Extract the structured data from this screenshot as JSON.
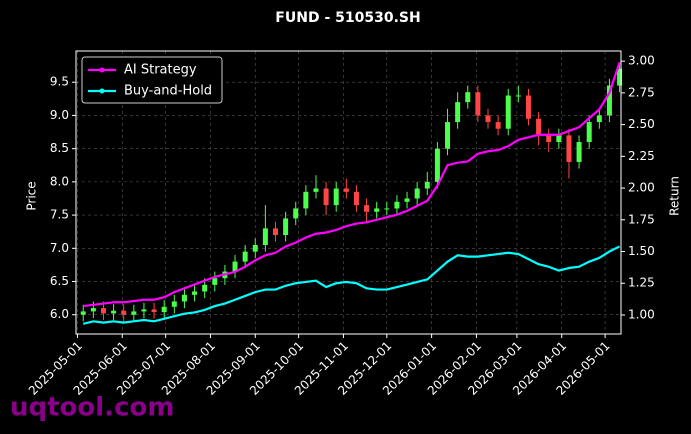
{
  "chart_data": {
    "type": "candlestick",
    "title": "FUND - 510530.SH",
    "ylabel": "Price",
    "y2label": "Return",
    "x": [
      "2025-05-05",
      "2025-05-12",
      "2025-05-19",
      "2025-05-26",
      "2025-06-02",
      "2025-06-09",
      "2025-06-16",
      "2025-06-23",
      "2025-06-30",
      "2025-07-07",
      "2025-07-14",
      "2025-07-21",
      "2025-07-28",
      "2025-08-04",
      "2025-08-11",
      "2025-08-18",
      "2025-08-25",
      "2025-09-01",
      "2025-09-08",
      "2025-09-15",
      "2025-09-22",
      "2025-09-29",
      "2025-10-06",
      "2025-10-13",
      "2025-10-20",
      "2025-10-27",
      "2025-11-03",
      "2025-11-10",
      "2025-11-17",
      "2025-11-24",
      "2025-12-01",
      "2025-12-08",
      "2025-12-15",
      "2025-12-22",
      "2025-12-29",
      "2026-01-05",
      "2026-01-12",
      "2026-01-19",
      "2026-01-26",
      "2026-02-02",
      "2026-02-09",
      "2026-02-16",
      "2026-02-23",
      "2026-03-02",
      "2026-03-09",
      "2026-03-16",
      "2026-03-23",
      "2026-03-30",
      "2026-04-06",
      "2026-04-13",
      "2026-04-20",
      "2026-04-27",
      "2026-05-04",
      "2026-05-11"
    ],
    "open": [
      6.0,
      6.05,
      6.1,
      6.02,
      6.06,
      6.0,
      6.05,
      6.08,
      6.04,
      6.12,
      6.2,
      6.3,
      6.35,
      6.45,
      6.55,
      6.65,
      6.8,
      6.95,
      7.05,
      7.3,
      7.2,
      7.45,
      7.6,
      7.85,
      7.9,
      7.65,
      7.9,
      7.85,
      7.65,
      7.55,
      7.6,
      7.6,
      7.7,
      7.75,
      7.9,
      8.0,
      8.5,
      8.9,
      9.2,
      9.35,
      9.0,
      8.9,
      8.8,
      9.3,
      9.3,
      8.95,
      8.7,
      8.6,
      8.7,
      8.3,
      8.6,
      8.9,
      9.0,
      9.45
    ],
    "high": [
      6.15,
      6.2,
      6.2,
      6.16,
      6.16,
      6.15,
      6.18,
      6.18,
      6.22,
      6.3,
      6.4,
      6.45,
      6.55,
      6.65,
      6.75,
      6.9,
      7.05,
      7.15,
      7.65,
      7.4,
      7.55,
      7.7,
      7.95,
      8.1,
      8.0,
      8.0,
      8.05,
      7.95,
      7.75,
      7.7,
      7.7,
      7.8,
      7.85,
      8.0,
      8.15,
      8.6,
      9.1,
      9.35,
      9.45,
      9.45,
      9.1,
      9.0,
      9.4,
      9.45,
      9.4,
      9.05,
      8.8,
      8.8,
      8.8,
      8.7,
      9.0,
      9.1,
      9.55,
      9.8
    ],
    "low": [
      5.9,
      5.95,
      5.92,
      5.92,
      5.9,
      5.9,
      5.95,
      5.94,
      5.94,
      6.02,
      6.1,
      6.2,
      6.25,
      6.35,
      6.45,
      6.55,
      6.7,
      6.85,
      6.95,
      7.1,
      7.1,
      7.35,
      7.5,
      7.75,
      7.5,
      7.55,
      7.75,
      7.55,
      7.4,
      7.45,
      7.5,
      7.5,
      7.6,
      7.65,
      7.8,
      7.9,
      8.4,
      8.8,
      9.1,
      8.9,
      8.8,
      8.7,
      8.7,
      9.2,
      8.85,
      8.55,
      8.45,
      8.5,
      8.05,
      8.2,
      8.5,
      8.8,
      8.9,
      9.35
    ],
    "close": [
      6.05,
      6.1,
      6.02,
      6.06,
      6.0,
      6.05,
      6.08,
      6.04,
      6.12,
      6.2,
      6.3,
      6.35,
      6.45,
      6.55,
      6.65,
      6.8,
      6.95,
      7.05,
      7.3,
      7.2,
      7.45,
      7.6,
      7.85,
      7.9,
      7.65,
      7.9,
      7.85,
      7.65,
      7.55,
      7.6,
      7.6,
      7.7,
      7.75,
      7.9,
      8.0,
      8.5,
      8.9,
      9.2,
      9.35,
      9.0,
      8.9,
      8.8,
      9.3,
      9.3,
      8.95,
      8.7,
      8.6,
      8.7,
      8.3,
      8.6,
      8.9,
      9.0,
      9.45,
      9.7
    ],
    "up_color": "#4cff4c",
    "down_color": "#ff4545",
    "series": [
      {
        "name": "AI Strategy",
        "color": "#ff00ff",
        "axis": "y2",
        "values": [
          1.07,
          1.08,
          1.09,
          1.1,
          1.1,
          1.11,
          1.12,
          1.12,
          1.14,
          1.18,
          1.21,
          1.24,
          1.27,
          1.3,
          1.32,
          1.34,
          1.38,
          1.43,
          1.47,
          1.49,
          1.54,
          1.57,
          1.61,
          1.64,
          1.65,
          1.67,
          1.7,
          1.72,
          1.73,
          1.75,
          1.77,
          1.79,
          1.82,
          1.86,
          1.9,
          2.02,
          2.18,
          2.2,
          2.21,
          2.27,
          2.29,
          2.3,
          2.33,
          2.38,
          2.4,
          2.42,
          2.42,
          2.42,
          2.45,
          2.48,
          2.55,
          2.62,
          2.75,
          2.99
        ]
      },
      {
        "name": "Buy-and-Hold",
        "color": "#00ffff",
        "axis": "y2",
        "values": [
          0.93,
          0.95,
          0.94,
          0.95,
          0.94,
          0.95,
          0.96,
          0.95,
          0.97,
          0.99,
          1.01,
          1.02,
          1.04,
          1.07,
          1.09,
          1.12,
          1.15,
          1.18,
          1.2,
          1.2,
          1.23,
          1.25,
          1.26,
          1.27,
          1.22,
          1.25,
          1.26,
          1.25,
          1.21,
          1.2,
          1.2,
          1.22,
          1.24,
          1.26,
          1.28,
          1.35,
          1.42,
          1.47,
          1.46,
          1.46,
          1.47,
          1.48,
          1.49,
          1.48,
          1.44,
          1.4,
          1.38,
          1.35,
          1.37,
          1.38,
          1.42,
          1.45,
          1.5,
          1.54
        ]
      }
    ],
    "xlim": [
      "2025-04-30",
      "2026-05-12"
    ],
    "xticks": [
      "2025-05-01",
      "2025-06-01",
      "2025-07-01",
      "2025-08-01",
      "2025-09-01",
      "2025-10-01",
      "2025-11-01",
      "2025-12-01",
      "2026-01-01",
      "2026-02-01",
      "2026-03-01",
      "2026-04-01",
      "2026-05-01"
    ],
    "ylim": [
      5.71,
      9.97
    ],
    "yticks": [
      {
        "value": 6,
        "label": "6.0"
      },
      6.5,
      {
        "value": 7,
        "label": "7.0"
      },
      7.5,
      {
        "value": 8,
        "label": "8.0"
      },
      8.5,
      {
        "value": 9,
        "label": "9.0"
      },
      9.5
    ],
    "y2lim": [
      0.85,
      3.08
    ],
    "y2ticks": [
      {
        "value": 1,
        "label": "1.00"
      },
      1.25,
      {
        "value": 1.5,
        "label": "1.50"
      },
      1.75,
      {
        "value": 2,
        "label": "2.00"
      },
      2.25,
      {
        "value": 2.5,
        "label": "2.50"
      },
      2.75,
      {
        "value": 3,
        "label": "3.00"
      }
    ],
    "grid": true,
    "legend": "upper left"
  },
  "watermark": "uqtool.com"
}
